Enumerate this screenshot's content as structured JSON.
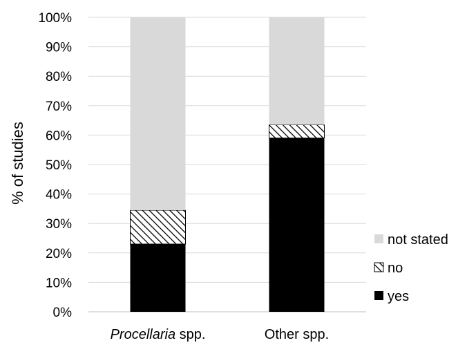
{
  "chart_data": {
    "type": "bar",
    "stacked": true,
    "ylabel": "% of studies",
    "ylim": [
      0,
      100
    ],
    "yticks": [
      "0%",
      "10%",
      "20%",
      "30%",
      "40%",
      "50%",
      "60%",
      "70%",
      "80%",
      "90%",
      "100%"
    ],
    "grid": true,
    "legend_position": "bottom-right",
    "categories": [
      {
        "italic": "Procellaria",
        "rest": " spp."
      },
      {
        "italic": "",
        "rest": "Other spp."
      }
    ],
    "series": [
      {
        "name": "yes",
        "values": [
          23,
          59
        ],
        "color": "#000000",
        "pattern": "solid"
      },
      {
        "name": "no",
        "values": [
          11.5,
          4.5
        ],
        "color": "#000000",
        "pattern": "hatch"
      },
      {
        "name": "not stated",
        "values": [
          65.5,
          36.5
        ],
        "color": "#d9d9d9",
        "pattern": "solid"
      }
    ],
    "legend_order": [
      "not stated",
      "no",
      "yes"
    ]
  }
}
